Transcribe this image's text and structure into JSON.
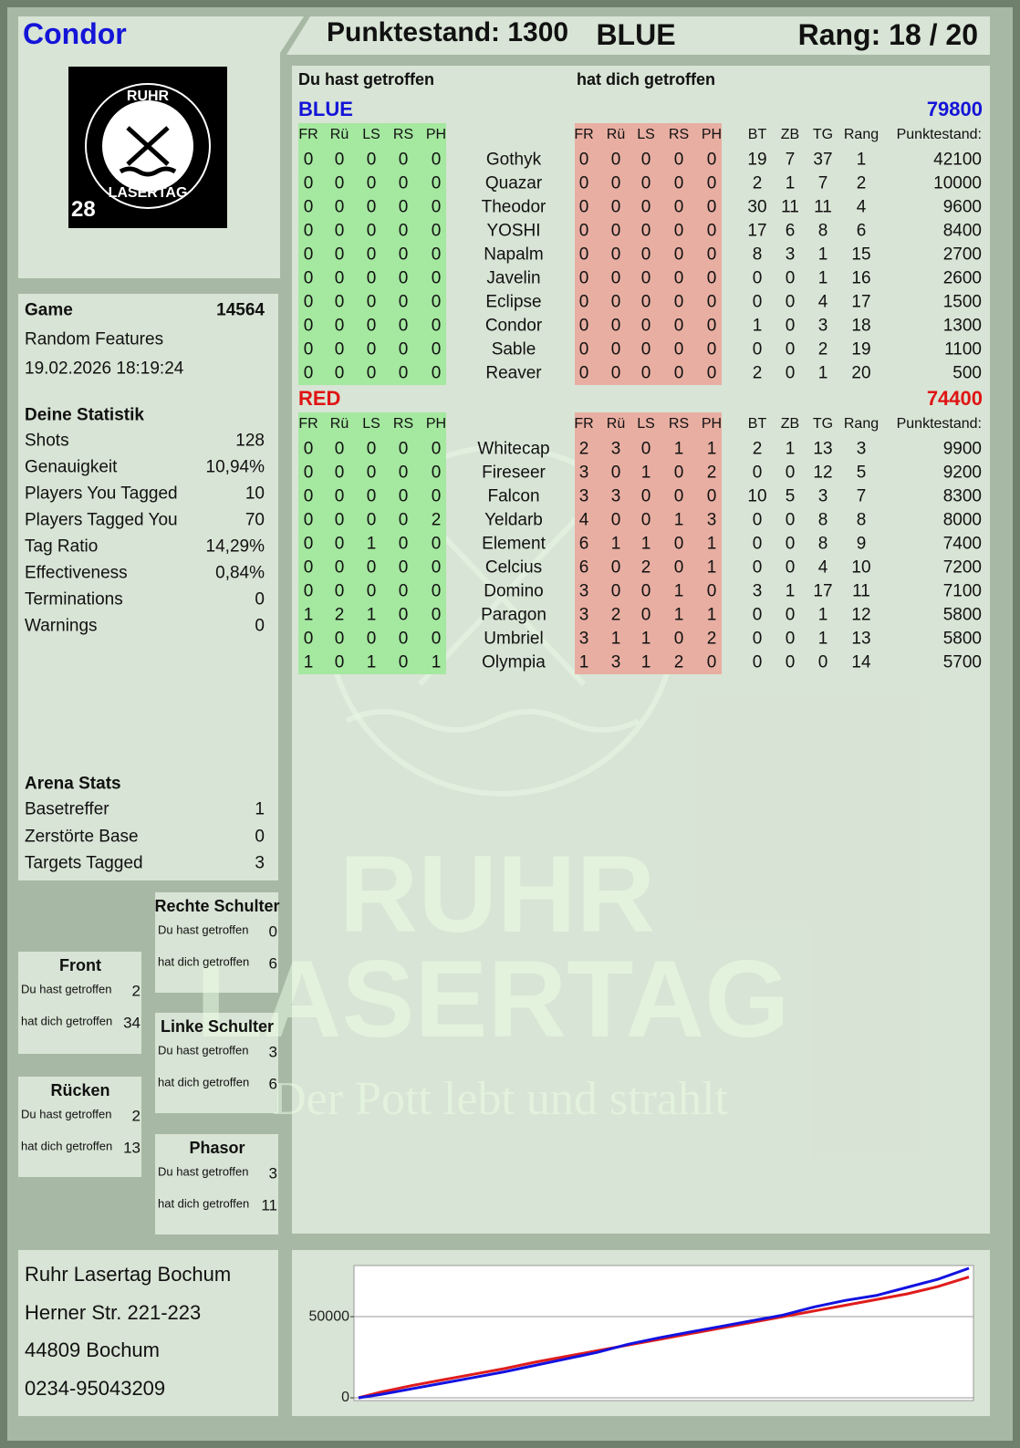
{
  "header": {
    "player": "Condor",
    "score": "Punktestand: 1300",
    "team": "BLUE",
    "rank": "Rang: 18 / 20"
  },
  "logo": {
    "top": "RUHR",
    "bottom": "LASERTAG",
    "number": "28"
  },
  "game": {
    "label": "Game",
    "id": "14564",
    "mode": "Random Features",
    "date": "19.02.2026 18:19:24"
  },
  "stats": {
    "title": "Deine Statistik",
    "rows": [
      [
        "Shots",
        "128"
      ],
      [
        "Genauigkeit",
        "10,94%"
      ],
      [
        "Players You Tagged",
        "10"
      ],
      [
        "Players Tagged You",
        "70"
      ],
      [
        "Tag Ratio",
        "14,29%"
      ],
      [
        "Effectiveness",
        "0,84%"
      ],
      [
        "Terminations",
        "0"
      ],
      [
        "Warnings",
        "0"
      ]
    ]
  },
  "arena": {
    "title": "Arena Stats",
    "rows": [
      [
        "Basetreffer",
        "1"
      ],
      [
        "Zerstörte Base",
        "0"
      ],
      [
        "Targets Tagged",
        "3"
      ]
    ]
  },
  "zones": [
    {
      "title": "Rechte Schulter",
      "rows": [
        [
          "Du hast getroffen",
          "0"
        ],
        [
          "hat dich getroffen",
          "6"
        ]
      ]
    },
    {
      "title": "Front",
      "rows": [
        [
          "Du hast getroffen",
          "2"
        ],
        [
          "hat dich getroffen",
          "34"
        ]
      ]
    },
    {
      "title": "Linke Schulter",
      "rows": [
        [
          "Du hast getroffen",
          "3"
        ],
        [
          "hat dich getroffen",
          "6"
        ]
      ]
    },
    {
      "title": "Rücken",
      "rows": [
        [
          "Du hast getroffen",
          "2"
        ],
        [
          "hat dich getroffen",
          "13"
        ]
      ]
    },
    {
      "title": "Phasor",
      "rows": [
        [
          "Du hast getroffen",
          "3"
        ],
        [
          "hat dich getroffen",
          "11"
        ]
      ]
    }
  ],
  "address": [
    "Ruhr Lasertag Bochum",
    "Herner Str. 221-223",
    "44809 Bochum",
    "0234-95043209"
  ],
  "watermark": {
    "big1": "RUHR",
    "big2": "LASERTAG",
    "slogan": "Der Pott lebt und strahlt"
  },
  "scoreboard": {
    "hit_title": "Du hast getroffen",
    "got_title": "hat dich getroffen",
    "zone_headers": [
      "FR",
      "Rü",
      "LS",
      "RS",
      "PH"
    ],
    "stat_headers": [
      "BT",
      "ZB",
      "TG",
      "Rang",
      "Punktestand:"
    ],
    "teams": [
      {
        "name": "BLUE",
        "color": "#1414d8",
        "total": "79800",
        "players": [
          {
            "name": "Gothyk",
            "hit": [
              0,
              0,
              0,
              0,
              0
            ],
            "got": [
              0,
              0,
              0,
              0,
              0
            ],
            "stats": [
              19,
              7,
              37,
              1,
              42100
            ]
          },
          {
            "name": "Quazar",
            "hit": [
              0,
              0,
              0,
              0,
              0
            ],
            "got": [
              0,
              0,
              0,
              0,
              0
            ],
            "stats": [
              2,
              1,
              7,
              2,
              10000
            ]
          },
          {
            "name": "Theodor",
            "hit": [
              0,
              0,
              0,
              0,
              0
            ],
            "got": [
              0,
              0,
              0,
              0,
              0
            ],
            "stats": [
              30,
              11,
              11,
              4,
              9600
            ]
          },
          {
            "name": "YOSHI",
            "hit": [
              0,
              0,
              0,
              0,
              0
            ],
            "got": [
              0,
              0,
              0,
              0,
              0
            ],
            "stats": [
              17,
              6,
              8,
              6,
              8400
            ]
          },
          {
            "name": "Napalm",
            "hit": [
              0,
              0,
              0,
              0,
              0
            ],
            "got": [
              0,
              0,
              0,
              0,
              0
            ],
            "stats": [
              8,
              3,
              1,
              15,
              2700
            ]
          },
          {
            "name": "Javelin",
            "hit": [
              0,
              0,
              0,
              0,
              0
            ],
            "got": [
              0,
              0,
              0,
              0,
              0
            ],
            "stats": [
              0,
              0,
              1,
              16,
              2600
            ]
          },
          {
            "name": "Eclipse",
            "hit": [
              0,
              0,
              0,
              0,
              0
            ],
            "got": [
              0,
              0,
              0,
              0,
              0
            ],
            "stats": [
              0,
              0,
              4,
              17,
              1500
            ]
          },
          {
            "name": "Condor",
            "hit": [
              0,
              0,
              0,
              0,
              0
            ],
            "got": [
              0,
              0,
              0,
              0,
              0
            ],
            "stats": [
              1,
              0,
              3,
              18,
              1300
            ]
          },
          {
            "name": "Sable",
            "hit": [
              0,
              0,
              0,
              0,
              0
            ],
            "got": [
              0,
              0,
              0,
              0,
              0
            ],
            "stats": [
              0,
              0,
              2,
              19,
              1100
            ]
          },
          {
            "name": "Reaver",
            "hit": [
              0,
              0,
              0,
              0,
              0
            ],
            "got": [
              0,
              0,
              0,
              0,
              0
            ],
            "stats": [
              2,
              0,
              1,
              20,
              500
            ]
          }
        ]
      },
      {
        "name": "RED",
        "color": "#e01414",
        "total": "74400",
        "players": [
          {
            "name": "Whitecap",
            "hit": [
              0,
              0,
              0,
              0,
              0
            ],
            "got": [
              2,
              3,
              0,
              1,
              1
            ],
            "stats": [
              2,
              1,
              13,
              3,
              9900
            ]
          },
          {
            "name": "Fireseer",
            "hit": [
              0,
              0,
              0,
              0,
              0
            ],
            "got": [
              3,
              0,
              1,
              0,
              2
            ],
            "stats": [
              0,
              0,
              12,
              5,
              9200
            ]
          },
          {
            "name": "Falcon",
            "hit": [
              0,
              0,
              0,
              0,
              0
            ],
            "got": [
              3,
              3,
              0,
              0,
              0
            ],
            "stats": [
              10,
              5,
              3,
              7,
              8300
            ]
          },
          {
            "name": "Yeldarb",
            "hit": [
              0,
              0,
              0,
              0,
              2
            ],
            "got": [
              4,
              0,
              0,
              1,
              3
            ],
            "stats": [
              0,
              0,
              8,
              8,
              8000
            ]
          },
          {
            "name": "Element",
            "hit": [
              0,
              0,
              1,
              0,
              0
            ],
            "got": [
              6,
              1,
              1,
              0,
              1
            ],
            "stats": [
              0,
              0,
              8,
              9,
              7400
            ]
          },
          {
            "name": "Celcius",
            "hit": [
              0,
              0,
              0,
              0,
              0
            ],
            "got": [
              6,
              0,
              2,
              0,
              1
            ],
            "stats": [
              0,
              0,
              4,
              10,
              7200
            ]
          },
          {
            "name": "Domino",
            "hit": [
              0,
              0,
              0,
              0,
              0
            ],
            "got": [
              3,
              0,
              0,
              1,
              0
            ],
            "stats": [
              3,
              1,
              17,
              11,
              7100
            ]
          },
          {
            "name": "Paragon",
            "hit": [
              1,
              2,
              1,
              0,
              0
            ],
            "got": [
              3,
              2,
              0,
              1,
              1
            ],
            "stats": [
              0,
              0,
              1,
              12,
              5800
            ]
          },
          {
            "name": "Umbriel",
            "hit": [
              0,
              0,
              0,
              0,
              0
            ],
            "got": [
              3,
              1,
              1,
              0,
              2
            ],
            "stats": [
              0,
              0,
              1,
              13,
              5800
            ]
          },
          {
            "name": "Olympia",
            "hit": [
              1,
              0,
              1,
              0,
              1
            ],
            "got": [
              1,
              3,
              1,
              2,
              0
            ],
            "stats": [
              0,
              0,
              0,
              14,
              5700
            ]
          }
        ]
      }
    ]
  },
  "chart_data": {
    "type": "line",
    "x": [
      0,
      1,
      2,
      3,
      4,
      5,
      6,
      7,
      8,
      9,
      10,
      11,
      12,
      13,
      14,
      15,
      16,
      17,
      18,
      19,
      20
    ],
    "xlim": [
      0,
      20
    ],
    "ylim": [
      0,
      81500
    ],
    "yticks": [
      0,
      50000
    ],
    "grid": true,
    "series": [
      {
        "color": "#1212e0",
        "values": [
          0,
          2000,
          5500,
          9000,
          12500,
          16000,
          20000,
          24000,
          28000,
          33000,
          37000,
          40500,
          44000,
          47500,
          51000,
          56000,
          60000,
          63000,
          68000,
          73000,
          79800
        ]
      },
      {
        "color": "#e01c1c",
        "values": [
          0,
          3500,
          7500,
          11000,
          14500,
          18000,
          22000,
          25500,
          29000,
          32500,
          36000,
          39500,
          43000,
          46500,
          50000,
          53500,
          57000,
          60500,
          64000,
          68500,
          74400
        ]
      }
    ]
  }
}
